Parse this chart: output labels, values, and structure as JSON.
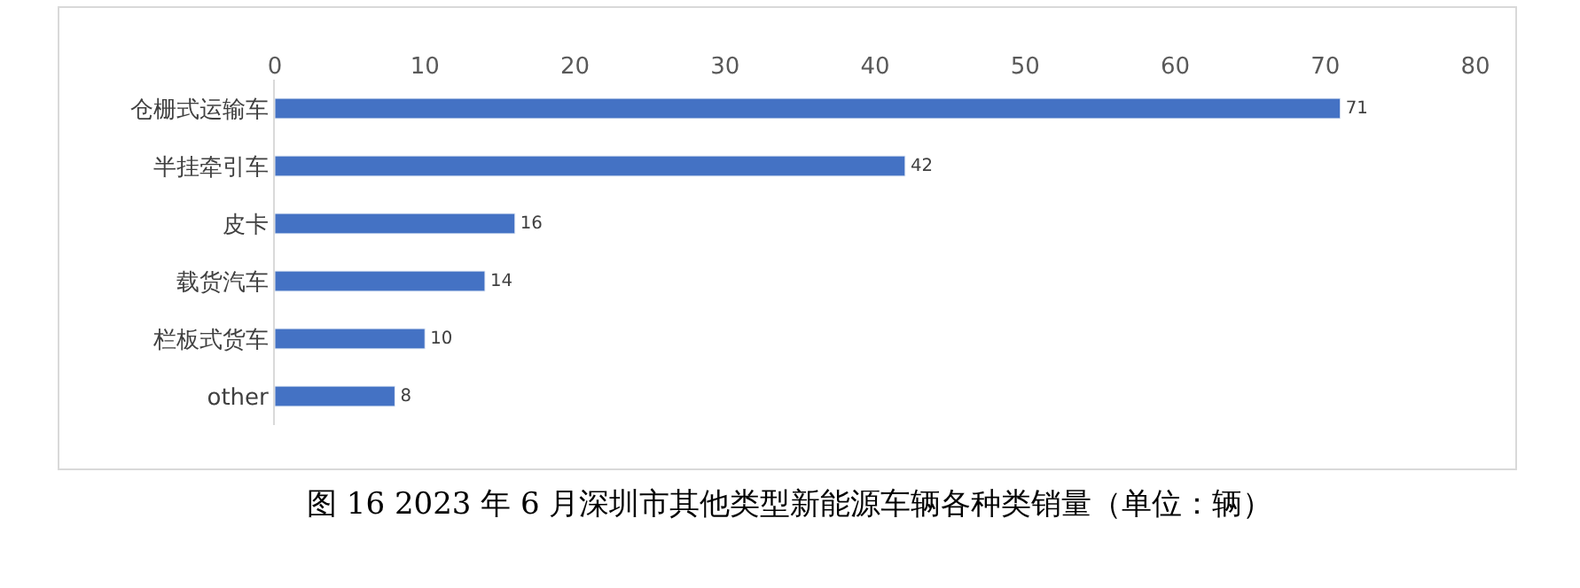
{
  "chart_data": {
    "type": "bar",
    "orientation": "horizontal",
    "categories": [
      "仓栅式运输车",
      "半挂牵引车",
      "皮卡",
      "载货汽车",
      "栏板式货车",
      "other"
    ],
    "values": [
      71,
      42,
      16,
      14,
      10,
      8
    ],
    "color": "#4472c4",
    "xlim": [
      0,
      80
    ],
    "xticks": [
      0,
      10,
      20,
      30,
      40,
      50,
      60,
      70,
      80
    ],
    "data_labels": true,
    "grid": false,
    "legend": false,
    "annotations": [
      "图 16 2023 年 6 月深圳市其他类型新能源车辆各种类销量（单位：辆）"
    ]
  }
}
